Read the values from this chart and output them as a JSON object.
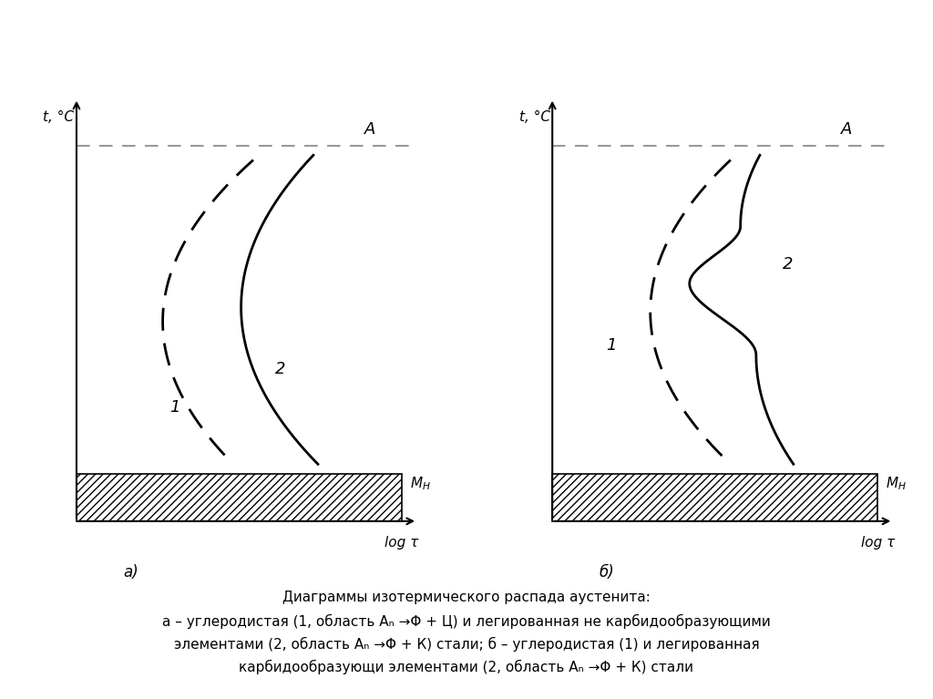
{
  "bg_color": "#ffffff",
  "label_A": "A",
  "label_t": "t, °C",
  "label_logtau": "log τ",
  "label_MH": "$M_{H}$",
  "label_1": "1",
  "label_2": "2",
  "label_a": "а)",
  "label_b": "б)",
  "caption1": "Диаграммы изотермического распада аустенита:",
  "caption2": "а – углеродистая (1, область Aₙ →Φ + Ц) и легированная не карбидообразующими",
  "caption3": "элементами (2, область Aₙ →Φ + К) стали; б – углеродистая (1) и легированная",
  "caption4": "карбидообразующи элементами (2, область Aₙ →Φ + К) стали"
}
